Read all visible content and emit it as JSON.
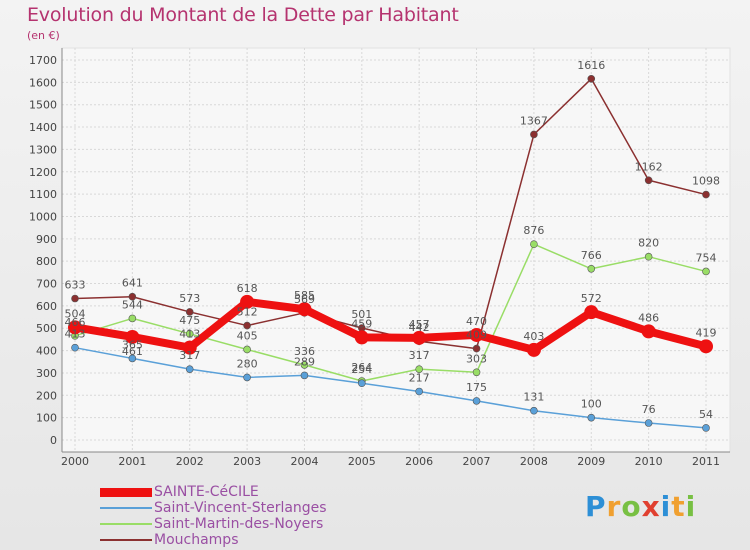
{
  "title": "Evolution du Montant de la Dette par Habitant",
  "subtitle": "(en €)",
  "logo": {
    "letters": [
      "P",
      "r",
      "o",
      "x",
      "i",
      "t",
      "i"
    ],
    "colors": [
      "#2d8fd6",
      "#f0a030",
      "#78c043",
      "#e04030",
      "#2d8fd6",
      "#f0a030",
      "#78c043"
    ]
  },
  "chart_data": {
    "type": "line",
    "title": "Evolution du Montant de la Dette par Habitant",
    "ylabel": "(en €)",
    "ylim": [
      0,
      1700
    ],
    "yticks": [
      0,
      100,
      200,
      300,
      400,
      500,
      600,
      700,
      800,
      900,
      1000,
      1100,
      1200,
      1300,
      1400,
      1500,
      1600,
      1700
    ],
    "x": [
      "2000",
      "2001",
      "2002",
      "2003",
      "2004",
      "2005",
      "2006",
      "2007",
      "2008",
      "2009",
      "2010",
      "2011"
    ],
    "grid": true,
    "legend_position": "bottom-left",
    "series": [
      {
        "name": "SAINTE-CéCILE",
        "color": "#ee1111",
        "width": 8,
        "marker": 7,
        "values": [
          504,
          461,
          413,
          618,
          585,
          459,
          457,
          470,
          403,
          572,
          486,
          419
        ],
        "labels": [
          "504",
          "461",
          "413",
          "618",
          "585",
          "459",
          "457",
          "470",
          "403",
          "572",
          "486",
          "419"
        ],
        "label_dy": [
          -10,
          18,
          -10,
          -10,
          -10,
          -10,
          -10,
          -10,
          -10,
          -10,
          -10,
          -10
        ]
      },
      {
        "name": "Saint-Vincent-Sterlanges",
        "color": "#5aa0d8",
        "width": 1.5,
        "marker": 3.5,
        "values": [
          413,
          365,
          317,
          280,
          289,
          254,
          217,
          175,
          131,
          100,
          76,
          54
        ],
        "labels": [
          "413",
          "365",
          "317",
          "280",
          "289",
          "254",
          "217",
          "175",
          "131",
          "100",
          "76",
          "54"
        ],
        "label_dy": [
          -10,
          -10,
          -10,
          -10,
          -10,
          -10,
          -10,
          -10,
          -10,
          -10,
          -10,
          -10
        ]
      },
      {
        "name": "Saint-Martin-des-Noyers",
        "color": "#99dd66",
        "width": 1.5,
        "marker": 3.5,
        "values": [
          466,
          544,
          475,
          405,
          336,
          264,
          317,
          303,
          876,
          766,
          820,
          754
        ],
        "labels": [
          "466",
          "544",
          "475",
          "405",
          "336",
          "264",
          "317",
          "303",
          "876",
          "766",
          "820",
          "754"
        ],
        "label_dy": [
          -10,
          -10,
          -10,
          -10,
          -10,
          -10,
          -10,
          -10,
          -10,
          -10,
          -10,
          -10
        ]
      },
      {
        "name": "Mouchamps",
        "color": "#8b3030",
        "width": 1.5,
        "marker": 3.5,
        "values": [
          633,
          641,
          573,
          512,
          569,
          501,
          442,
          409,
          1367,
          1616,
          1162,
          1098
        ],
        "labels": [
          "633",
          "641",
          "573",
          "512",
          "569",
          "501",
          "442",
          "409",
          "1367",
          "1616",
          "1162",
          "1098"
        ],
        "label_dy": [
          -10,
          -10,
          -10,
          -10,
          -10,
          -10,
          -10,
          -10,
          -10,
          -10,
          -10,
          -10
        ]
      }
    ]
  }
}
